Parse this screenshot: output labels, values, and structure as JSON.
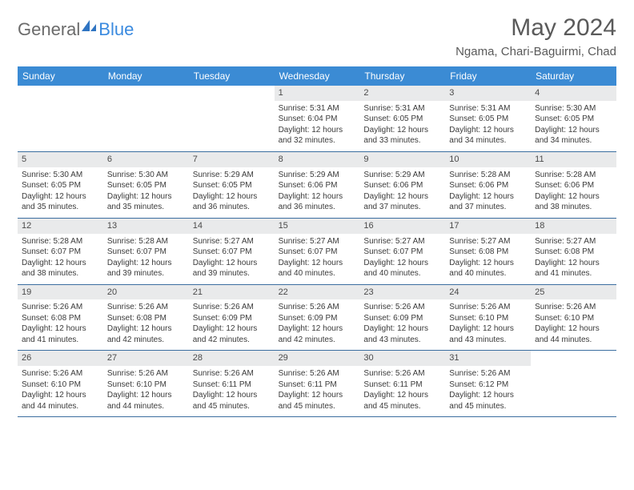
{
  "logo": {
    "part1": "General",
    "part2": "Blue"
  },
  "title": "May 2024",
  "location": "Ngama, Chari-Baguirmi, Chad",
  "colors": {
    "header_bg": "#3b8bd4",
    "header_text": "#ffffff",
    "daynum_bg": "#e9eaeb",
    "week_border": "#3b6ea0",
    "logo_blue": "#3a8adf",
    "logo_gray": "#6b6b6b"
  },
  "day_names": [
    "Sunday",
    "Monday",
    "Tuesday",
    "Wednesday",
    "Thursday",
    "Friday",
    "Saturday"
  ],
  "grid": [
    [
      {
        "blank": true
      },
      {
        "blank": true
      },
      {
        "blank": true
      },
      {
        "day": "1",
        "sunrise": "5:31 AM",
        "sunset": "6:04 PM",
        "daylight": "12 hours and 32 minutes."
      },
      {
        "day": "2",
        "sunrise": "5:31 AM",
        "sunset": "6:05 PM",
        "daylight": "12 hours and 33 minutes."
      },
      {
        "day": "3",
        "sunrise": "5:31 AM",
        "sunset": "6:05 PM",
        "daylight": "12 hours and 34 minutes."
      },
      {
        "day": "4",
        "sunrise": "5:30 AM",
        "sunset": "6:05 PM",
        "daylight": "12 hours and 34 minutes."
      }
    ],
    [
      {
        "day": "5",
        "sunrise": "5:30 AM",
        "sunset": "6:05 PM",
        "daylight": "12 hours and 35 minutes."
      },
      {
        "day": "6",
        "sunrise": "5:30 AM",
        "sunset": "6:05 PM",
        "daylight": "12 hours and 35 minutes."
      },
      {
        "day": "7",
        "sunrise": "5:29 AM",
        "sunset": "6:05 PM",
        "daylight": "12 hours and 36 minutes."
      },
      {
        "day": "8",
        "sunrise": "5:29 AM",
        "sunset": "6:06 PM",
        "daylight": "12 hours and 36 minutes."
      },
      {
        "day": "9",
        "sunrise": "5:29 AM",
        "sunset": "6:06 PM",
        "daylight": "12 hours and 37 minutes."
      },
      {
        "day": "10",
        "sunrise": "5:28 AM",
        "sunset": "6:06 PM",
        "daylight": "12 hours and 37 minutes."
      },
      {
        "day": "11",
        "sunrise": "5:28 AM",
        "sunset": "6:06 PM",
        "daylight": "12 hours and 38 minutes."
      }
    ],
    [
      {
        "day": "12",
        "sunrise": "5:28 AM",
        "sunset": "6:07 PM",
        "daylight": "12 hours and 38 minutes."
      },
      {
        "day": "13",
        "sunrise": "5:28 AM",
        "sunset": "6:07 PM",
        "daylight": "12 hours and 39 minutes."
      },
      {
        "day": "14",
        "sunrise": "5:27 AM",
        "sunset": "6:07 PM",
        "daylight": "12 hours and 39 minutes."
      },
      {
        "day": "15",
        "sunrise": "5:27 AM",
        "sunset": "6:07 PM",
        "daylight": "12 hours and 40 minutes."
      },
      {
        "day": "16",
        "sunrise": "5:27 AM",
        "sunset": "6:07 PM",
        "daylight": "12 hours and 40 minutes."
      },
      {
        "day": "17",
        "sunrise": "5:27 AM",
        "sunset": "6:08 PM",
        "daylight": "12 hours and 40 minutes."
      },
      {
        "day": "18",
        "sunrise": "5:27 AM",
        "sunset": "6:08 PM",
        "daylight": "12 hours and 41 minutes."
      }
    ],
    [
      {
        "day": "19",
        "sunrise": "5:26 AM",
        "sunset": "6:08 PM",
        "daylight": "12 hours and 41 minutes."
      },
      {
        "day": "20",
        "sunrise": "5:26 AM",
        "sunset": "6:08 PM",
        "daylight": "12 hours and 42 minutes."
      },
      {
        "day": "21",
        "sunrise": "5:26 AM",
        "sunset": "6:09 PM",
        "daylight": "12 hours and 42 minutes."
      },
      {
        "day": "22",
        "sunrise": "5:26 AM",
        "sunset": "6:09 PM",
        "daylight": "12 hours and 42 minutes."
      },
      {
        "day": "23",
        "sunrise": "5:26 AM",
        "sunset": "6:09 PM",
        "daylight": "12 hours and 43 minutes."
      },
      {
        "day": "24",
        "sunrise": "5:26 AM",
        "sunset": "6:10 PM",
        "daylight": "12 hours and 43 minutes."
      },
      {
        "day": "25",
        "sunrise": "5:26 AM",
        "sunset": "6:10 PM",
        "daylight": "12 hours and 44 minutes."
      }
    ],
    [
      {
        "day": "26",
        "sunrise": "5:26 AM",
        "sunset": "6:10 PM",
        "daylight": "12 hours and 44 minutes."
      },
      {
        "day": "27",
        "sunrise": "5:26 AM",
        "sunset": "6:10 PM",
        "daylight": "12 hours and 44 minutes."
      },
      {
        "day": "28",
        "sunrise": "5:26 AM",
        "sunset": "6:11 PM",
        "daylight": "12 hours and 45 minutes."
      },
      {
        "day": "29",
        "sunrise": "5:26 AM",
        "sunset": "6:11 PM",
        "daylight": "12 hours and 45 minutes."
      },
      {
        "day": "30",
        "sunrise": "5:26 AM",
        "sunset": "6:11 PM",
        "daylight": "12 hours and 45 minutes."
      },
      {
        "day": "31",
        "sunrise": "5:26 AM",
        "sunset": "6:12 PM",
        "daylight": "12 hours and 45 minutes."
      },
      {
        "blank": true
      }
    ]
  ],
  "labels": {
    "sunrise": "Sunrise: ",
    "sunset": "Sunset: ",
    "daylight": "Daylight: "
  }
}
